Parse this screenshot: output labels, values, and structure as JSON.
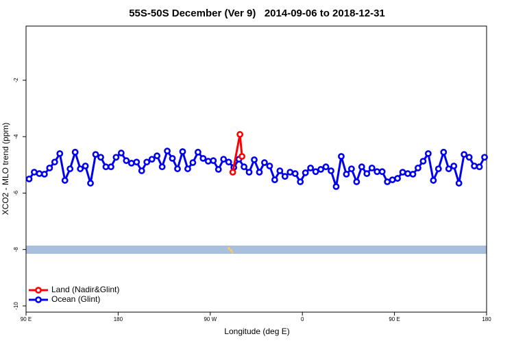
{
  "chart_data": {
    "type": "line",
    "title": "55S-50S December (Ver 9)   2014-09-06 to 2018-12-31",
    "x_label": "Longitude (deg E)",
    "y_label": "XCO2 - MLO trend (ppm)",
    "xlim": [
      90,
      540
    ],
    "xticks": [
      {
        "value": 90,
        "label": "90 E"
      },
      180,
      {
        "value": 270,
        "label": "90 W"
      },
      {
        "value": 360,
        "label": "0"
      },
      {
        "value": 450,
        "label": "90 E"
      },
      {
        "value": 540,
        "label": "180"
      }
    ],
    "ylim": [
      -10.22,
      -0.08
    ],
    "yticks": [
      -10,
      -8,
      -6,
      -4,
      -2
    ],
    "legend": "bottom-left",
    "series": [
      {
        "name": "Land (Nadir&Glint)",
        "color": "#ff0000",
        "x": [
          292,
          299,
          301
        ],
        "values": [
          -5.26,
          -3.92,
          -4.7
        ]
      },
      {
        "name": "Ocean (Glint)",
        "color": "#0000ee",
        "x": [
          93,
          98,
          103,
          108,
          113,
          118,
          123,
          128,
          133,
          138,
          143,
          148,
          153,
          158,
          163,
          168,
          173,
          178,
          183,
          188,
          193,
          198,
          203,
          208,
          213,
          218,
          223,
          228,
          233,
          238,
          243,
          248,
          253,
          258,
          263,
          268,
          273,
          278,
          283,
          288,
          293,
          298,
          303,
          308,
          313,
          318,
          323,
          328,
          333,
          338,
          343,
          348,
          353,
          358,
          363,
          368,
          373,
          378,
          383,
          388,
          393,
          398,
          403,
          408,
          413,
          418,
          423,
          428,
          433,
          438,
          443,
          448,
          453,
          458,
          463,
          468,
          473,
          478,
          483,
          488,
          493,
          498,
          503,
          508,
          513,
          518,
          523,
          528,
          533,
          538
        ],
        "values": [
          -5.5,
          -5.26,
          -5.31,
          -5.33,
          -5.11,
          -4.9,
          -4.6,
          -5.55,
          -5.14,
          -4.55,
          -5.14,
          -5.04,
          -5.65,
          -4.63,
          -4.73,
          -5.07,
          -5.07,
          -4.73,
          -4.58,
          -4.85,
          -4.94,
          -4.9,
          -5.21,
          -4.9,
          -4.8,
          -4.68,
          -5.07,
          -4.51,
          -4.77,
          -5.14,
          -4.53,
          -5.14,
          -4.92,
          -4.55,
          -4.77,
          -4.87,
          -4.85,
          -5.16,
          -4.8,
          -4.9,
          -5.09,
          -4.8,
          -5.07,
          -5.26,
          -4.82,
          -5.26,
          -4.92,
          -5.04,
          -5.53,
          -5.21,
          -5.41,
          -5.26,
          -5.31,
          -5.6,
          -5.28,
          -5.11,
          -5.24,
          -5.16,
          -5.07,
          -5.21,
          -5.77,
          -4.7,
          -5.33,
          -5.14,
          -5.6,
          -5.07,
          -5.31,
          -5.11,
          -5.24,
          -5.24,
          -5.6,
          -5.53,
          -5.48,
          -5.26,
          -5.31,
          -5.33,
          -5.11,
          -4.87,
          -4.6,
          -5.55,
          -5.14,
          -4.55,
          -5.14,
          -5.04,
          -5.65,
          -4.63,
          -4.73,
          -5.04,
          -5.07,
          -4.73
        ]
      }
    ]
  }
}
